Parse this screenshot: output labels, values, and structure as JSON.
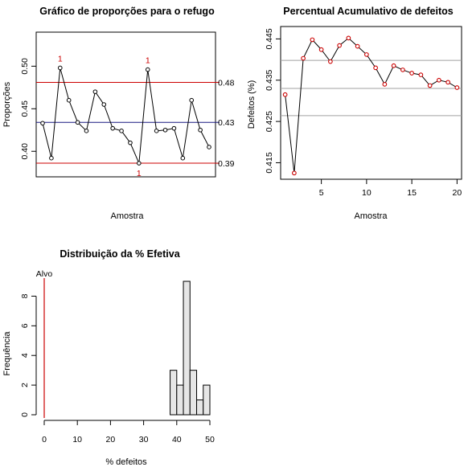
{
  "chart_data": [
    {
      "type": "line",
      "title": "Gráfico de proporções para o refugo",
      "xlabel": "Amostra",
      "ylabel": "Proporções",
      "ylim": [
        0.37,
        0.54
      ],
      "y_ticks": [
        0.4,
        0.45,
        0.5
      ],
      "y_tick_labels": [
        "0.40",
        "0.45",
        "0.50"
      ],
      "x": [
        1,
        2,
        3,
        4,
        5,
        6,
        7,
        8,
        9,
        10,
        11,
        12,
        13,
        14,
        15,
        16,
        17,
        18,
        19,
        20
      ],
      "values": [
        0.433,
        0.392,
        0.498,
        0.46,
        0.434,
        0.424,
        0.47,
        0.455,
        0.427,
        0.424,
        0.41,
        0.386,
        0.496,
        0.424,
        0.425,
        0.427,
        0.392,
        0.46,
        0.425,
        0.405
      ],
      "control_lines": [
        {
          "name": "UCL",
          "value": 0.481,
          "label": "0.48",
          "color": "#cc0000"
        },
        {
          "name": "CL",
          "value": 0.434,
          "label": "0.43",
          "color": "#1a1a80"
        },
        {
          "name": "LCL",
          "value": 0.386,
          "label": "0.39",
          "color": "#cc0000"
        }
      ],
      "violation_markers": [
        {
          "x": 3,
          "label": "1",
          "position": "above"
        },
        {
          "x": 12,
          "label": "1",
          "position": "below"
        },
        {
          "x": 13,
          "label": "1",
          "position": "above"
        }
      ],
      "grid": false
    },
    {
      "type": "line",
      "title": "Percentual Acumulativo de defeitos",
      "xlabel": "Amostra",
      "ylabel": "Defeitos (%)",
      "xlim": [
        0.5,
        20.5
      ],
      "ylim": [
        0.411,
        0.448
      ],
      "x_ticks": [
        5,
        10,
        15,
        20
      ],
      "x_tick_labels": [
        "5",
        "10",
        "15",
        "20"
      ],
      "y_ticks": [
        0.415,
        0.425,
        0.435,
        0.445
      ],
      "y_tick_labels": [
        "0.415",
        "0.425",
        "0.435",
        "0.445"
      ],
      "x": [
        1,
        2,
        3,
        4,
        5,
        6,
        7,
        8,
        9,
        10,
        11,
        12,
        13,
        14,
        15,
        16,
        17,
        18,
        19,
        20
      ],
      "values": [
        0.4315,
        0.4125,
        0.4403,
        0.4448,
        0.4424,
        0.4395,
        0.4434,
        0.4452,
        0.4432,
        0.4412,
        0.438,
        0.434,
        0.4385,
        0.4375,
        0.4367,
        0.4363,
        0.4337,
        0.435,
        0.4345,
        0.4332
      ],
      "reference_lines": [
        0.4398,
        0.433,
        0.4264
      ],
      "colors": {
        "line": "#000000",
        "marker": "#cc0000",
        "reference": "#a0a0a0"
      },
      "grid": false
    },
    {
      "type": "histogram",
      "title": "Distribuição da % Efetiva",
      "xlabel": "% defeitos",
      "ylabel": "Frequência",
      "xlim": [
        0,
        50
      ],
      "ylim": [
        0,
        9
      ],
      "x_ticks": [
        0,
        10,
        20,
        30,
        40,
        50
      ],
      "x_tick_labels": [
        "0",
        "10",
        "20",
        "30",
        "40",
        "50"
      ],
      "y_ticks": [
        0,
        2,
        4,
        6,
        8
      ],
      "y_tick_labels": [
        "0",
        "2",
        "4",
        "6",
        "8"
      ],
      "bins": [
        {
          "from": 38,
          "to": 40,
          "count": 3
        },
        {
          "from": 40,
          "to": 42,
          "count": 2
        },
        {
          "from": 42,
          "to": 44,
          "count": 9
        },
        {
          "from": 44,
          "to": 46,
          "count": 3
        },
        {
          "from": 46,
          "to": 48,
          "count": 1
        },
        {
          "from": 48,
          "to": 50,
          "count": 2
        }
      ],
      "target": {
        "value": 0,
        "label": "Alvo",
        "color": "#cc0000"
      },
      "colors": {
        "bar_fill": "#e6e6e6",
        "bar_stroke": "#000000"
      },
      "grid": false
    }
  ]
}
